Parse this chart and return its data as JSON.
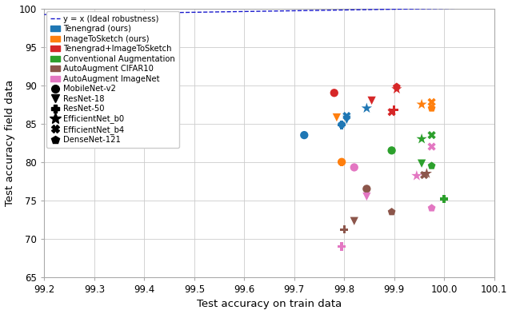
{
  "xlabel": "Test accuracy on train data",
  "ylabel": "Test accuracy field data",
  "xlim": [
    99.2,
    100.1
  ],
  "ylim": [
    65,
    100
  ],
  "xticks": [
    99.2,
    99.3,
    99.4,
    99.5,
    99.6,
    99.7,
    99.8,
    99.9,
    100.0,
    100.1
  ],
  "yticks": [
    65,
    70,
    75,
    80,
    85,
    90,
    95,
    100
  ],
  "methods": {
    "Tenengrad (ours)": {
      "color": "#1f77b4",
      "points": {
        "MobileNet-v2": [
          99.72,
          83.5
        ],
        "ResNet-18": [
          99.805,
          85.5
        ],
        "ResNet-50": [
          99.795,
          84.8
        ],
        "EfficientNet_b0": [
          99.845,
          87.0
        ],
        "EfficientNet_b4": [
          99.805,
          86.0
        ],
        "DenseNet-121": [
          99.795,
          84.9
        ]
      }
    },
    "ImageToSketch (ours)": {
      "color": "#ff7f0e",
      "points": {
        "MobileNet-v2": [
          99.795,
          80.0
        ],
        "ResNet-18": [
          99.785,
          85.8
        ],
        "ResNet-50": [
          99.795,
          80.0
        ],
        "EfficientNet_b0": [
          99.955,
          87.5
        ],
        "EfficientNet_b4": [
          99.975,
          87.8
        ],
        "DenseNet-121": [
          99.975,
          87.0
        ]
      }
    },
    "Tenengrad+ImageToSketch": {
      "color": "#d62728",
      "points": {
        "MobileNet-v2": [
          99.78,
          89.0
        ],
        "ResNet-18": [
          99.855,
          88.0
        ],
        "ResNet-50": [
          99.9,
          86.8
        ],
        "EfficientNet_b0": [
          99.905,
          89.5
        ],
        "EfficientNet_b4": [
          99.895,
          86.5
        ],
        "DenseNet-121": [
          99.905,
          89.8
        ]
      }
    },
    "Conventional Augmentation": {
      "color": "#2ca02c",
      "points": {
        "MobileNet-v2": [
          99.895,
          81.5
        ],
        "ResNet-18": [
          99.955,
          79.8
        ],
        "ResNet-50": [
          100.0,
          75.2
        ],
        "EfficientNet_b0": [
          99.955,
          83.0
        ],
        "EfficientNet_b4": [
          99.975,
          83.5
        ],
        "DenseNet-121": [
          99.975,
          79.5
        ]
      }
    },
    "AutoAugment CIFAR10": {
      "color": "#8c564b",
      "points": {
        "MobileNet-v2": [
          99.845,
          76.5
        ],
        "ResNet-18": [
          99.82,
          72.3
        ],
        "ResNet-50": [
          99.8,
          71.2
        ],
        "EfficientNet_b0": [
          99.965,
          78.5
        ],
        "EfficientNet_b4": [
          99.96,
          78.3
        ],
        "DenseNet-121": [
          99.895,
          73.5
        ]
      }
    },
    "AutoAugment ImageNet": {
      "color": "#e377c2",
      "points": {
        "MobileNet-v2": [
          99.82,
          79.3
        ],
        "ResNet-18": [
          99.845,
          75.5
        ],
        "ResNet-50": [
          99.795,
          69.0
        ],
        "EfficientNet_b0": [
          99.945,
          78.2
        ],
        "EfficientNet_b4": [
          99.975,
          82.0
        ],
        "DenseNet-121": [
          99.975,
          74.0
        ]
      }
    }
  },
  "marker_map": {
    "MobileNet-v2": "o",
    "ResNet-18": "v",
    "ResNet-50": "P",
    "EfficientNet_b0": "*",
    "EfficientNet_b4": "X",
    "DenseNet-121": "p"
  },
  "color_legend": [
    [
      "Tenengrad (ours)",
      "#1f77b4"
    ],
    [
      "ImageToSketch (ours)",
      "#ff7f0e"
    ],
    [
      "Tenengrad+ImageToSketch",
      "#d62728"
    ],
    [
      "Conventional Augmentation",
      "#2ca02c"
    ],
    [
      "AutoAugment CIFAR10",
      "#8c564b"
    ],
    [
      "AutoAugment ImageNet",
      "#e377c2"
    ]
  ],
  "marker_legend": [
    [
      "MobileNet-v2",
      "o"
    ],
    [
      "ResNet-18",
      "v"
    ],
    [
      "ResNet-50",
      "P"
    ],
    [
      "EfficientNet_b0",
      "*"
    ],
    [
      "EfficientNet_b4",
      "X"
    ],
    [
      "DenseNet-121",
      "p"
    ]
  ],
  "ideal_line_color": "#1919cc",
  "ideal_line_label": "y = x (Ideal robustness)"
}
